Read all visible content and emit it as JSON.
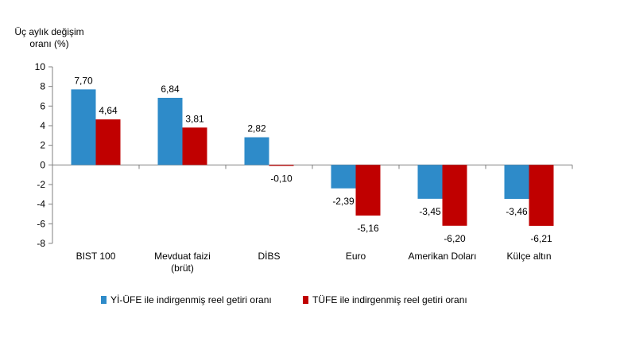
{
  "chart_data": {
    "type": "bar",
    "ylabel_lines": [
      "Üç aylık değişim",
      "oranı (%)"
    ],
    "categories": [
      [
        "BIST 100"
      ],
      [
        "Mevduat faizi",
        "(brüt)"
      ],
      [
        "DİBS"
      ],
      [
        "Euro"
      ],
      [
        "Amerikan Doları"
      ],
      [
        "Külçe altın"
      ]
    ],
    "series": [
      {
        "name": "Yİ-ÜFE ile indirgenmiş reel getiri oranı",
        "color": "#2e8bc9",
        "values": [
          7.7,
          6.84,
          2.82,
          -2.39,
          -3.45,
          -3.46
        ],
        "labels": [
          "7,70",
          "6,84",
          "2,82",
          "-2,39",
          "-3,45",
          "-3,46"
        ]
      },
      {
        "name": "TÜFE ile indirgenmiş reel getiri oranı",
        "color": "#c00000",
        "values": [
          4.64,
          3.81,
          -0.1,
          -5.16,
          -6.2,
          -6.21
        ],
        "labels": [
          "4,64",
          "3,81",
          "-0,10",
          "-5,16",
          "-6,20",
          "-6,21"
        ]
      }
    ],
    "ylim": [
      -8,
      10
    ],
    "yticks": [
      10,
      8,
      6,
      4,
      2,
      0,
      -2,
      -4,
      -6,
      -8
    ],
    "ytick_labels": [
      "10",
      "8",
      "6",
      "4",
      "2",
      "0",
      "-2",
      "-4",
      "-6",
      "-8"
    ],
    "grid": false,
    "legend_position": "bottom"
  }
}
